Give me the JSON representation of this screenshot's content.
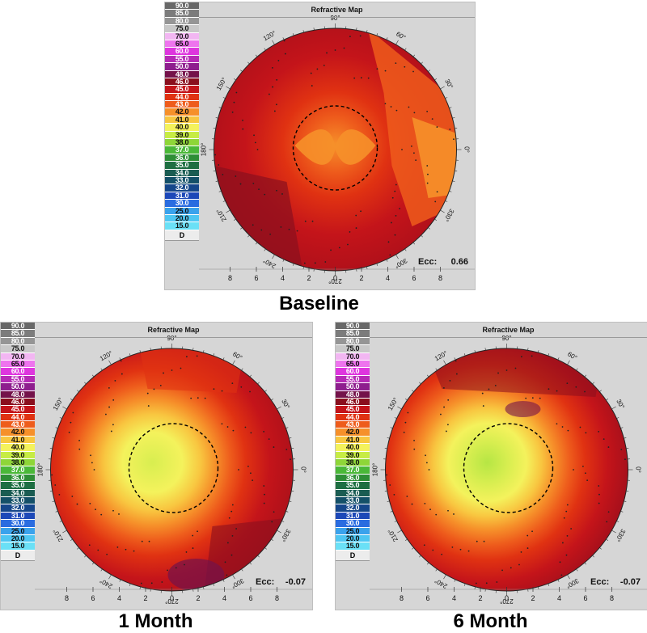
{
  "legend": {
    "items": [
      {
        "label": "90.0",
        "color": "#686868"
      },
      {
        "label": "85.0",
        "color": "#7c7c7c"
      },
      {
        "label": "80.0",
        "color": "#959595"
      },
      {
        "label": "75.0",
        "color": "#c8c8c8"
      },
      {
        "label": "70.0",
        "color": "#f2b6f2"
      },
      {
        "label": "65.0",
        "color": "#ee74ee"
      },
      {
        "label": "60.0",
        "color": "#de36de"
      },
      {
        "label": "55.0",
        "color": "#b62ab6"
      },
      {
        "label": "50.0",
        "color": "#8e1e8e"
      },
      {
        "label": "48.0",
        "color": "#74124a"
      },
      {
        "label": "46.0",
        "color": "#8a0f1e"
      },
      {
        "label": "45.0",
        "color": "#c4141a"
      },
      {
        "label": "44.0",
        "color": "#e03212"
      },
      {
        "label": "43.0",
        "color": "#ee5c1c"
      },
      {
        "label": "42.0",
        "color": "#f6902a"
      },
      {
        "label": "41.0",
        "color": "#f8c640"
      },
      {
        "label": "40.0",
        "color": "#f4f25c"
      },
      {
        "label": "39.0",
        "color": "#c6ec44"
      },
      {
        "label": "38.0",
        "color": "#8ed638"
      },
      {
        "label": "37.0",
        "color": "#4ab838"
      },
      {
        "label": "36.0",
        "color": "#2e8e36"
      },
      {
        "label": "35.0",
        "color": "#1e6e42"
      },
      {
        "label": "34.0",
        "color": "#1a5c52"
      },
      {
        "label": "33.0",
        "color": "#145068"
      },
      {
        "label": "32.0",
        "color": "#15468a"
      },
      {
        "label": "31.0",
        "color": "#1c48b8"
      },
      {
        "label": "30.0",
        "color": "#2a6ce0"
      },
      {
        "label": "25.0",
        "color": "#3aa2ec"
      },
      {
        "label": "20.0",
        "color": "#4ec6f2"
      },
      {
        "label": "15.0",
        "color": "#6ae0f6"
      }
    ],
    "unit": "D"
  },
  "map_title": "Refractive Map",
  "axis_ticks": [
    "8",
    "6",
    "4",
    "2",
    "0",
    "2",
    "4",
    "6",
    "8"
  ],
  "angle_labels": [
    "90°",
    "60°",
    "30°",
    "0°",
    "330°",
    "300°",
    "270°",
    "240°",
    "210°",
    "180°",
    "150°",
    "120°"
  ],
  "ecc_label": "Ecc:",
  "maps": [
    {
      "caption": "Baseline",
      "ecc_value": "0.66",
      "center_power": "42.0",
      "periphery_power": "45.0"
    },
    {
      "caption": "1 Month",
      "ecc_value": "-0.07",
      "center_power": "40.0",
      "periphery_power": "45.0"
    },
    {
      "caption": "6 Month",
      "ecc_value": "-0.07",
      "center_power": "39.0",
      "periphery_power": "46.0"
    }
  ]
}
